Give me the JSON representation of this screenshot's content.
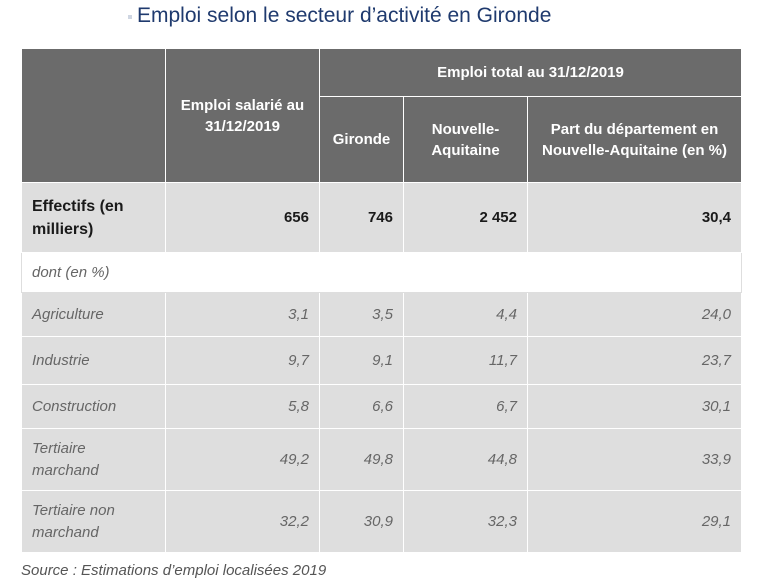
{
  "title": "Emploi selon le secteur d’activité en Gironde",
  "header": {
    "salarie": "Emploi salarié au 31/12/2019",
    "total_group": "Emploi total au 31/12/2019",
    "gironde": "Gironde",
    "nouvelle_aquitaine": "Nouvelle-Aquitaine",
    "part": "Part du département en Nouvelle-Aquitaine (en %)"
  },
  "effectifs": {
    "label": "Effectifs (en milliers)",
    "salarie": "656",
    "gironde": "746",
    "nouvelle_aquitaine": "2 452",
    "part": "30,4"
  },
  "dont_label": "dont (en %)",
  "rows": [
    {
      "label": "Agriculture",
      "salarie": "3,1",
      "gironde": "3,5",
      "nouvelle_aquitaine": "4,4",
      "part": "24,0"
    },
    {
      "label": "Industrie",
      "salarie": "9,7",
      "gironde": "9,1",
      "nouvelle_aquitaine": "11,7",
      "part": "23,7"
    },
    {
      "label": "Construction",
      "salarie": "5,8",
      "gironde": "6,6",
      "nouvelle_aquitaine": "6,7",
      "part": "30,1"
    },
    {
      "label": "Tertiaire marchand",
      "salarie": "49,2",
      "gironde": "49,8",
      "nouvelle_aquitaine": "44,8",
      "part": "33,9"
    },
    {
      "label": "Tertiaire non marchand",
      "salarie": "32,2",
      "gironde": "30,9",
      "nouvelle_aquitaine": "32,3",
      "part": "29,1"
    }
  ],
  "source": "Source : Estimations d’emploi localisées 2019"
}
